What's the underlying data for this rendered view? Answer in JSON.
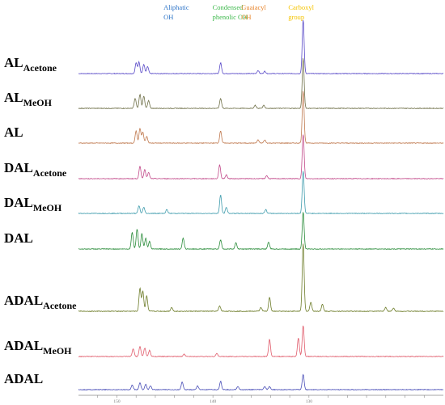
{
  "chart_data": {
    "type": "line",
    "title": "",
    "xlabel": "",
    "ylabel": "",
    "x_axis": {
      "reversed": true,
      "range": [
        116,
        154
      ],
      "tick_labels": [
        "150",
        "140",
        "130"
      ]
    },
    "regions": [
      {
        "label_lines": [
          "Aliphatic",
          "OH"
        ],
        "x_range": [
          145.4,
          149.6
        ],
        "color": "#2E75C8"
      },
      {
        "label_lines": [
          "Condensed",
          "phenolic OH"
        ],
        "x_range": [
          140.3,
          144.5
        ],
        "color": "#3BB84A"
      },
      {
        "label_lines": [
          "Guaiacyl",
          "OH"
        ],
        "x_range": [
          137.3,
          140.1
        ],
        "color": "#E8852D"
      },
      {
        "label_lines": [
          "Carboxyl",
          "group"
        ],
        "x_range": [
          132.4,
          135.0
        ],
        "color": "#F5C400"
      }
    ],
    "series": [
      {
        "name": "AL",
        "subscript": "Acetone",
        "color": "#5A4BC8",
        "peaks": [
          [
            148.0,
            14
          ],
          [
            147.7,
            15
          ],
          [
            147.2,
            12
          ],
          [
            146.8,
            9
          ],
          [
            139.2,
            14
          ],
          [
            135.3,
            4
          ],
          [
            134.6,
            3
          ],
          [
            130.6,
            70
          ]
        ]
      },
      {
        "name": "AL",
        "subscript": "MeOH",
        "color": "#6F7048",
        "peaks": [
          [
            148.1,
            13
          ],
          [
            147.6,
            18
          ],
          [
            147.2,
            16
          ],
          [
            146.7,
            10
          ],
          [
            139.2,
            13
          ],
          [
            135.6,
            4
          ],
          [
            134.7,
            4
          ],
          [
            130.6,
            65
          ]
        ]
      },
      {
        "name": "AL",
        "subscript": "",
        "color": "#C07A50",
        "peaks": [
          [
            148.0,
            16
          ],
          [
            147.6,
            19
          ],
          [
            147.3,
            14
          ],
          [
            146.9,
            9
          ],
          [
            139.2,
            16
          ],
          [
            135.3,
            4
          ],
          [
            134.6,
            4
          ],
          [
            130.6,
            68
          ]
        ]
      },
      {
        "name": "DAL",
        "subscript": "Acetone",
        "color": "#C24A8A",
        "peaks": [
          [
            147.6,
            16
          ],
          [
            147.1,
            12
          ],
          [
            146.7,
            8
          ],
          [
            139.3,
            18
          ],
          [
            138.6,
            5
          ],
          [
            134.4,
            4
          ],
          [
            130.6,
            58
          ]
        ]
      },
      {
        "name": "DAL",
        "subscript": "MeOH",
        "color": "#3F9CAD",
        "peaks": [
          [
            147.7,
            10
          ],
          [
            147.2,
            8
          ],
          [
            144.8,
            5
          ],
          [
            139.2,
            24
          ],
          [
            138.6,
            8
          ],
          [
            134.5,
            5
          ],
          [
            130.6,
            55
          ]
        ]
      },
      {
        "name": "DAL",
        "subscript": "",
        "color": "#2A8C3A",
        "peaks": [
          [
            148.4,
            22
          ],
          [
            147.9,
            26
          ],
          [
            147.4,
            20
          ],
          [
            147.0,
            14
          ],
          [
            146.6,
            10
          ],
          [
            143.1,
            14
          ],
          [
            139.2,
            12
          ],
          [
            137.6,
            8
          ],
          [
            134.2,
            9
          ],
          [
            130.6,
            48
          ]
        ]
      },
      {
        "name": "ADAL",
        "subscript": "Acetone",
        "color": "#6E7D2A",
        "peaks": [
          [
            147.6,
            30
          ],
          [
            147.3,
            26
          ],
          [
            146.9,
            20
          ],
          [
            144.3,
            5
          ],
          [
            139.3,
            7
          ],
          [
            135.0,
            5
          ],
          [
            134.1,
            18
          ],
          [
            130.6,
            88
          ],
          [
            129.8,
            12
          ],
          [
            128.6,
            9
          ],
          [
            122.0,
            5
          ],
          [
            121.2,
            4
          ]
        ]
      },
      {
        "name": "ADAL",
        "subscript": "MeOH",
        "color": "#E05A6A",
        "peaks": [
          [
            148.3,
            10
          ],
          [
            147.6,
            13
          ],
          [
            147.1,
            11
          ],
          [
            146.6,
            8
          ],
          [
            143.0,
            3
          ],
          [
            139.6,
            4
          ],
          [
            134.1,
            22
          ],
          [
            131.1,
            24
          ],
          [
            130.6,
            40
          ]
        ]
      },
      {
        "name": "ADAL",
        "subscript": "",
        "color": "#4A4FB8",
        "peaks": [
          [
            148.4,
            6
          ],
          [
            147.6,
            9
          ],
          [
            147.0,
            7
          ],
          [
            146.5,
            5
          ],
          [
            143.2,
            10
          ],
          [
            141.6,
            5
          ],
          [
            139.2,
            11
          ],
          [
            137.4,
            4
          ],
          [
            134.6,
            4
          ],
          [
            134.1,
            4
          ],
          [
            130.6,
            20
          ]
        ]
      }
    ]
  }
}
